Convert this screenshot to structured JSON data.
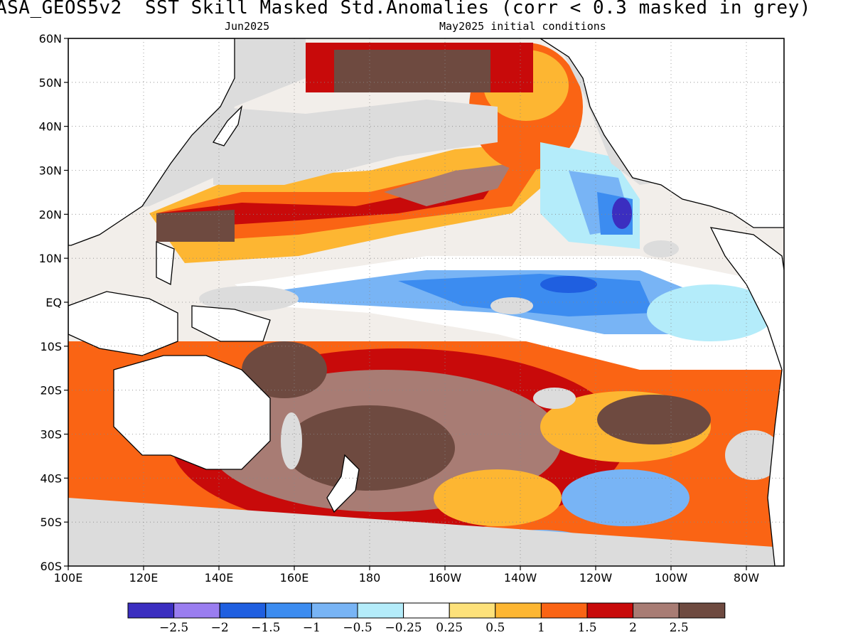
{
  "header": {
    "title": "ASA_GEOS5v2  SST Skill Masked Std.Anomalies (corr < 0.3 masked in grey)",
    "target_month": "Jun2025",
    "initial_conditions": "May2025 initial conditions"
  },
  "map": {
    "lat_labels": [
      "60N",
      "50N",
      "40N",
      "30N",
      "20N",
      "10N",
      "EQ",
      "10S",
      "20S",
      "30S",
      "40S",
      "50S",
      "60S"
    ],
    "lon_labels": [
      "100E",
      "120E",
      "140E",
      "160E",
      "180",
      "160W",
      "140W",
      "120W",
      "100W",
      "80W"
    ],
    "lat_range": [
      -60,
      60
    ],
    "lon_range": [
      100,
      290
    ],
    "mask_color": "#dcdcdc",
    "land_outline_color": "#000000"
  },
  "colorbar": {
    "colors": [
      "#3b2ec0",
      "#9a7df0",
      "#1f5fe0",
      "#3c8cf0",
      "#78b4f5",
      "#b4ecfa",
      "#ffffff",
      "#fde17a",
      "#fdb632",
      "#fa6414",
      "#c80a0a",
      "#a87c74",
      "#6e4a40"
    ],
    "labels": [
      "−2.5",
      "−2",
      "−1.5",
      "−1",
      "−0.5",
      "−0.25",
      "0.25",
      "0.5",
      "1",
      "1.5",
      "2",
      "2.5"
    ]
  }
}
